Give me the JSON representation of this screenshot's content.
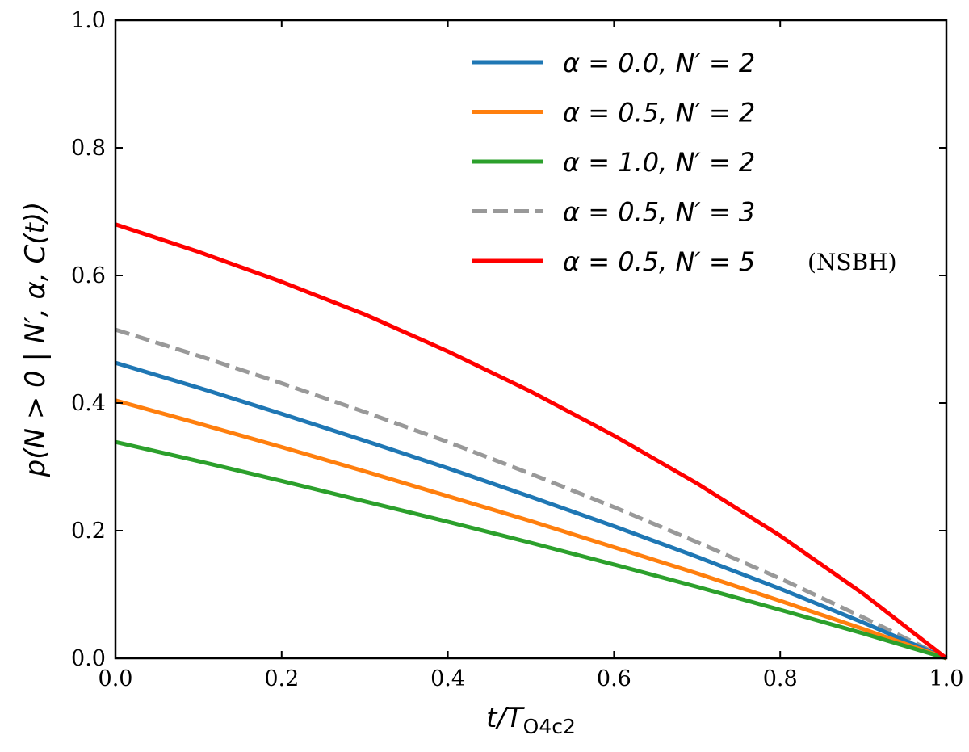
{
  "chart_data": {
    "type": "line",
    "title": "",
    "xlabel": "t/T",
    "xlabel_subscript": "O4c2",
    "ylabel": "p(N > 0 | N′, α, C(t))",
    "xlim": [
      0.0,
      1.0
    ],
    "ylim": [
      0.0,
      1.0
    ],
    "x_ticks": [
      "0.0",
      "0.2",
      "0.4",
      "0.6",
      "0.8",
      "1.0"
    ],
    "y_ticks": [
      "0.0",
      "0.2",
      "0.4",
      "0.6",
      "0.8",
      "1.0"
    ],
    "grid": false,
    "legend_position": "top-right",
    "x": [
      0.0,
      0.1,
      0.2,
      0.3,
      0.4,
      0.5,
      0.6,
      0.7,
      0.8,
      0.9,
      1.0
    ],
    "series": [
      {
        "name": "α = 0.0, N′ = 2",
        "suffix": "",
        "color": "#1f77b4",
        "dashed": false,
        "values": [
          0.463,
          0.424,
          0.383,
          0.341,
          0.298,
          0.253,
          0.207,
          0.159,
          0.109,
          0.056,
          0.0
        ]
      },
      {
        "name": "α = 0.5, N′ = 2",
        "suffix": "",
        "color": "#ff7f0e",
        "dashed": false,
        "values": [
          0.404,
          0.368,
          0.331,
          0.293,
          0.254,
          0.215,
          0.174,
          0.133,
          0.09,
          0.046,
          0.0
        ]
      },
      {
        "name": "α = 1.0, N′ = 2",
        "suffix": "",
        "color": "#2ca02c",
        "dashed": false,
        "values": [
          0.339,
          0.309,
          0.278,
          0.246,
          0.214,
          0.181,
          0.147,
          0.112,
          0.076,
          0.039,
          0.0
        ]
      },
      {
        "name": "α = 0.5, N′ = 3",
        "suffix": "",
        "color": "#999999",
        "dashed": true,
        "values": [
          0.515,
          0.474,
          0.431,
          0.386,
          0.339,
          0.289,
          0.237,
          0.182,
          0.125,
          0.064,
          0.0
        ]
      },
      {
        "name": "α = 0.5, N′ = 5",
        "suffix": "(NSBH)",
        "color": "#ff0000",
        "dashed": false,
        "values": [
          0.68,
          0.637,
          0.59,
          0.539,
          0.481,
          0.418,
          0.349,
          0.274,
          0.192,
          0.101,
          0.0
        ]
      }
    ]
  }
}
